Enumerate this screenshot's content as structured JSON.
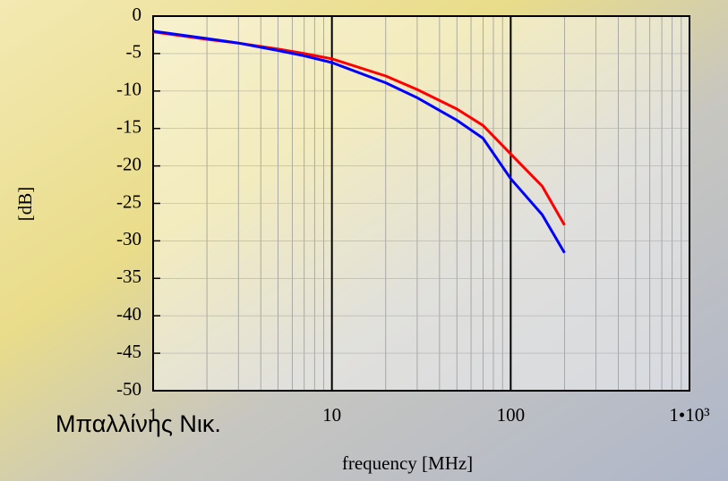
{
  "chart_data": {
    "type": "line",
    "xlabel": "frequency [MHz]",
    "ylabel": "[dB]",
    "annotation": "Μπαλλίνης Νικ.",
    "x": [
      1,
      2,
      3,
      5,
      7,
      10,
      20,
      30,
      50,
      70,
      100,
      150,
      200
    ],
    "series": [
      {
        "color": "#ff0000",
        "values": [
          -2.1,
          -3.1,
          -3.6,
          -4.4,
          -5.0,
          -5.7,
          -8.0,
          -9.8,
          -12.4,
          -14.6,
          -18.4,
          -22.7,
          -27.9
        ]
      },
      {
        "color": "#0000ff",
        "values": [
          -2.0,
          -3.0,
          -3.6,
          -4.6,
          -5.3,
          -6.2,
          -8.9,
          -10.9,
          -13.9,
          -16.3,
          -21.7,
          -26.5,
          -31.6
        ]
      }
    ],
    "xlim": [
      1,
      1000
    ],
    "x_log": true,
    "xticks": [
      1,
      10,
      100,
      {
        "value": 1000,
        "label": "1•10³"
      }
    ],
    "ylim": [
      -50,
      0
    ],
    "yticks": [
      0,
      -5,
      -10,
      -15,
      -20,
      -25,
      -30,
      -35,
      -40,
      -45,
      -50
    ],
    "grid": true
  }
}
